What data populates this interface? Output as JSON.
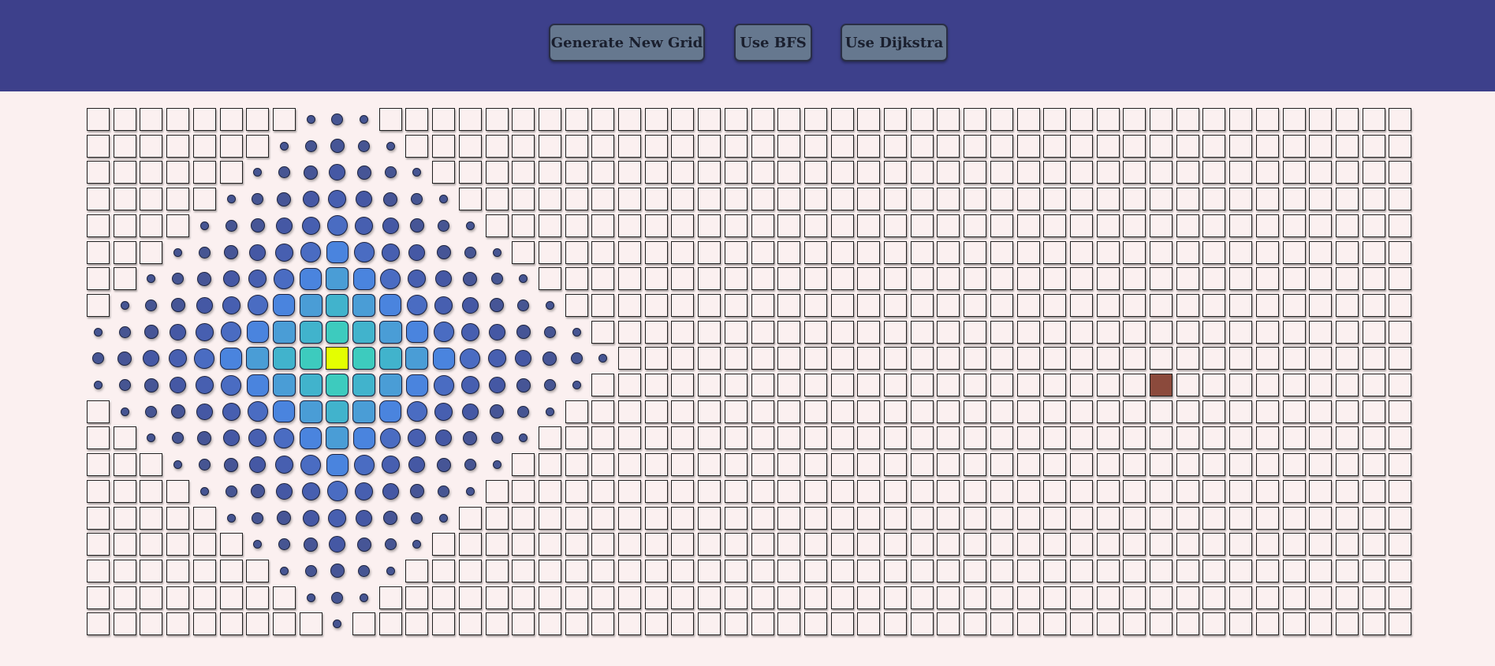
{
  "toolbar": {
    "generate_label": "Generate New Grid",
    "bfs_label": "Use BFS",
    "dijkstra_label": "Use Dijkstra"
  },
  "grid": {
    "cols": 50,
    "rows": 20,
    "start": {
      "row": 9,
      "col": 9
    },
    "walls": [
      {
        "row": 10,
        "col": 40
      }
    ],
    "max_visited_distance": 10,
    "visited_colors": [
      "#3ad7b8",
      "#3dcbbe",
      "#41b3cc",
      "#4a9dd6",
      "#4a84de",
      "#4a6cc2",
      "#475fb0",
      "#4558a4",
      "#465596",
      "#465592",
      "#465592"
    ]
  },
  "colors": {
    "toolbar_bg": "#3d408b",
    "page_bg": "#fbf0f0",
    "button_bg": "#66788f",
    "wall": "#8b4a3c",
    "start": "#e4ff00"
  }
}
